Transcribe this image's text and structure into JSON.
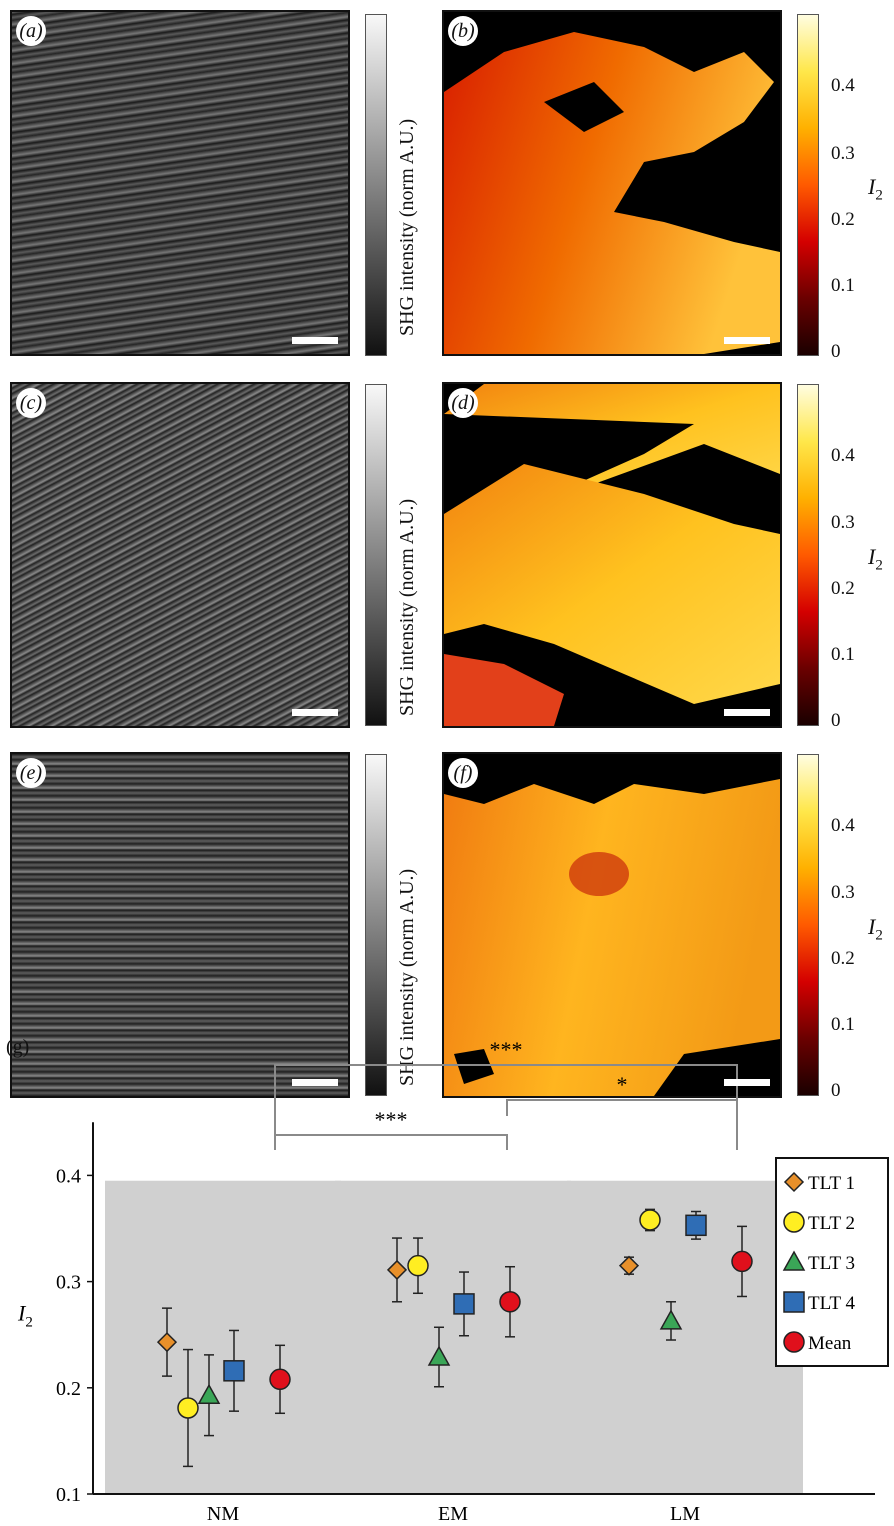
{
  "panels": [
    {
      "label": "(a)",
      "type": "SHG"
    },
    {
      "label": "(b)",
      "type": "I2"
    },
    {
      "label": "(c)",
      "type": "SHG"
    },
    {
      "label": "(d)",
      "type": "I2"
    },
    {
      "label": "(e)",
      "type": "SHG"
    },
    {
      "label": "(f)",
      "type": "I2"
    }
  ],
  "colorbars": {
    "shg_label": "SHG intensity (norm A.U.)",
    "i2_symbol": "I",
    "i2_sub": "2",
    "i2_ticks": [
      "0.4",
      "0.3",
      "0.2",
      "0.1",
      "0"
    ],
    "i2_colors": [
      "#fffde0",
      "#ffe74a",
      "#ffb000",
      "#ff5a00",
      "#d40000",
      "#6b0000",
      "#1a0000"
    ]
  },
  "chart_data": {
    "panel_label": "(g)",
    "type": "scatter",
    "categories": [
      "NM",
      "EM",
      "LM"
    ],
    "ylabel": "I2",
    "ylabel_symbol": "I",
    "ylabel_sub": "2",
    "ylim": [
      0.1,
      0.45
    ],
    "yticks": [
      "0.1",
      "0.2",
      "0.3",
      "0.4"
    ],
    "series": [
      {
        "name": "TLT 1",
        "marker": "diamond",
        "color": "#e8902a",
        "values": [
          0.243,
          0.311,
          0.315
        ],
        "errors": [
          0.032,
          0.03,
          0.008
        ]
      },
      {
        "name": "TLT 2",
        "marker": "circle",
        "color": "#ffee22",
        "values": [
          0.181,
          0.315,
          0.358
        ],
        "errors": [
          0.055,
          0.026,
          0.01
        ]
      },
      {
        "name": "TLT 3",
        "marker": "triangle",
        "color": "#3aa657",
        "values": [
          0.193,
          0.229,
          0.263
        ],
        "errors": [
          0.038,
          0.028,
          0.018
        ]
      },
      {
        "name": "TLT 4",
        "marker": "square",
        "color": "#2f6db5",
        "values": [
          0.216,
          0.279,
          0.353
        ],
        "errors": [
          0.038,
          0.03,
          0.013
        ]
      },
      {
        "name": "Mean",
        "marker": "circle",
        "color": "#e0101c",
        "values": [
          0.208,
          0.281,
          0.319
        ],
        "errors": [
          0.032,
          0.033,
          0.033
        ]
      }
    ],
    "significance": [
      {
        "from": "NM",
        "to": "LM",
        "label": "***"
      },
      {
        "from": "NM",
        "to": "EM",
        "label": "***"
      },
      {
        "from": "EM",
        "to": "LM",
        "label": "*"
      }
    ],
    "background_band_top": 0.395,
    "legend_position": "right"
  }
}
